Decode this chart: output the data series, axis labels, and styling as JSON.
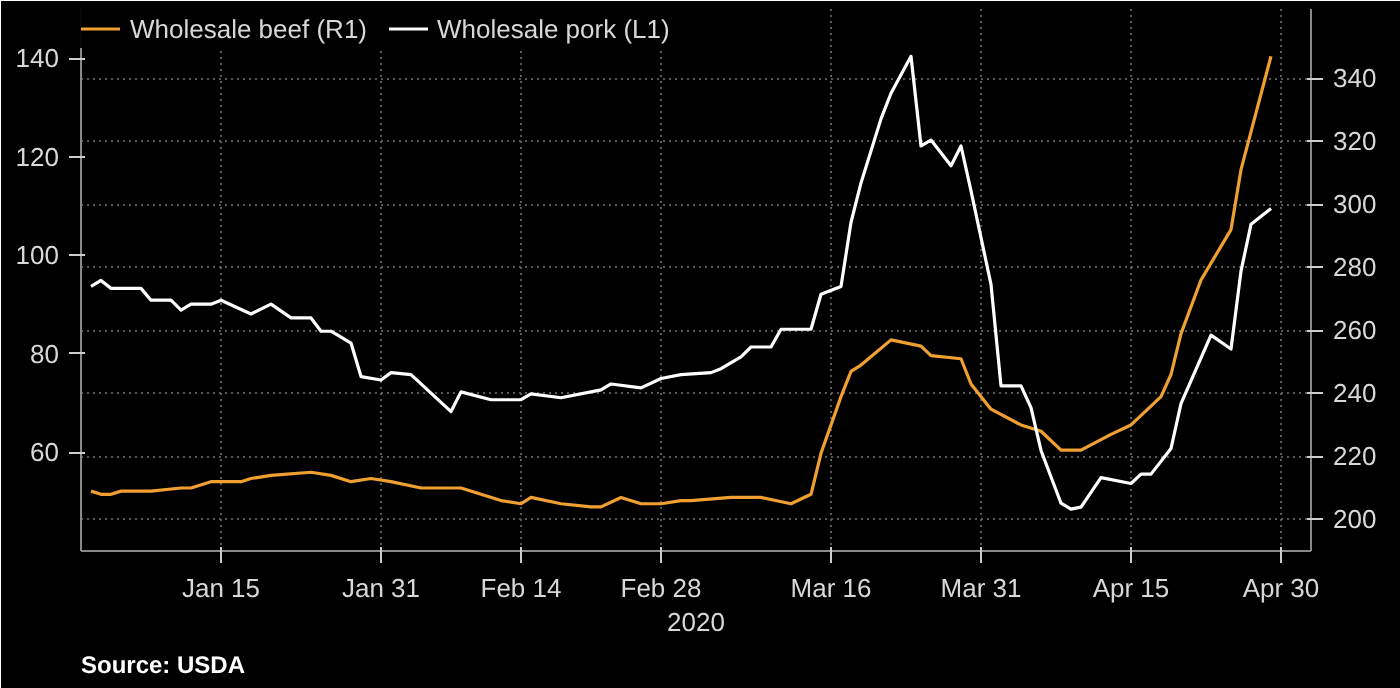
{
  "chart_data": {
    "type": "line",
    "xlabel": "2020",
    "annotations": [
      "Source: USDA"
    ],
    "legend": "top left",
    "grid": true,
    "line_style": "solid",
    "marker": "none",
    "xlim": [
      "2020-01-01",
      "2020-05-03"
    ],
    "xticks": [
      {
        "value": "2020-01-15",
        "label": "Jan 15"
      },
      {
        "value": "2020-01-31",
        "label": "Jan 31"
      },
      {
        "value": "2020-02-14",
        "label": "Feb 14"
      },
      {
        "value": "2020-02-28",
        "label": "Feb 28"
      },
      {
        "value": "2020-03-16",
        "label": "Mar 16"
      },
      {
        "value": "2020-03-31",
        "label": "Mar 31"
      },
      {
        "value": "2020-04-15",
        "label": "Apr 15"
      },
      {
        "value": "2020-04-30",
        "label": "Apr 30"
      }
    ],
    "ylim": [
      40,
      150
    ],
    "yticks": [
      60,
      80,
      100,
      120,
      140
    ],
    "y2lim": [
      190,
      362
    ],
    "y2ticks": [
      200,
      220,
      240,
      260,
      280,
      300,
      320,
      340
    ],
    "series": [
      {
        "name": "Wholesale beef (R1)",
        "color": "#f0a030",
        "axis": "y2",
        "x": [
          "2020-01-02",
          "2020-01-03",
          "2020-01-04",
          "2020-01-05",
          "2020-01-08",
          "2020-01-11",
          "2020-01-12",
          "2020-01-14",
          "2020-01-17",
          "2020-01-18",
          "2020-01-20",
          "2020-01-24",
          "2020-01-26",
          "2020-01-28",
          "2020-01-30",
          "2020-02-01",
          "2020-02-04",
          "2020-02-08",
          "2020-02-12",
          "2020-02-14",
          "2020-02-15",
          "2020-02-18",
          "2020-02-21",
          "2020-02-22",
          "2020-02-24",
          "2020-02-26",
          "2020-02-28",
          "2020-03-01",
          "2020-03-02",
          "2020-03-06",
          "2020-03-09",
          "2020-03-12",
          "2020-03-14",
          "2020-03-15",
          "2020-03-17",
          "2020-03-18",
          "2020-03-19",
          "2020-03-22",
          "2020-03-25",
          "2020-03-26",
          "2020-03-29",
          "2020-03-30",
          "2020-04-01",
          "2020-04-04",
          "2020-04-06",
          "2020-04-08",
          "2020-04-10",
          "2020-04-13",
          "2020-04-15",
          "2020-04-17",
          "2020-04-18",
          "2020-04-19",
          "2020-04-20",
          "2020-04-22",
          "2020-04-25",
          "2020-04-26",
          "2020-04-29"
        ],
        "values": [
          209,
          208,
          208,
          209,
          209,
          210,
          210,
          212,
          212,
          213,
          214,
          215,
          214,
          212,
          213,
          212,
          210,
          210,
          206,
          205,
          207,
          205,
          204,
          204,
          207,
          205,
          205,
          206,
          206,
          207,
          207,
          205,
          208,
          221,
          239,
          247,
          249,
          257,
          255,
          252,
          251,
          243,
          235,
          230,
          228,
          222,
          222,
          227,
          230,
          236,
          239,
          246,
          259,
          276,
          292,
          311,
          347
        ]
      },
      {
        "name": "Wholesale pork (L1)",
        "color": "#ffffff",
        "x": [
          "2020-01-02",
          "2020-01-03",
          "2020-01-04",
          "2020-01-07",
          "2020-01-08",
          "2020-01-10",
          "2020-01-11",
          "2020-01-12",
          "2020-01-14",
          "2020-01-15",
          "2020-01-18",
          "2020-01-20",
          "2020-01-22",
          "2020-01-24",
          "2020-01-25",
          "2020-01-26",
          "2020-01-28",
          "2020-01-29",
          "2020-01-31",
          "2020-02-01",
          "2020-02-03",
          "2020-02-07",
          "2020-02-08",
          "2020-02-11",
          "2020-02-14",
          "2020-02-15",
          "2020-02-18",
          "2020-02-22",
          "2020-02-23",
          "2020-02-26",
          "2020-02-28",
          "2020-03-01",
          "2020-03-04",
          "2020-03-05",
          "2020-03-07",
          "2020-03-08",
          "2020-03-10",
          "2020-03-11",
          "2020-03-12",
          "2020-03-14",
          "2020-03-15",
          "2020-03-17",
          "2020-03-18",
          "2020-03-19",
          "2020-03-21",
          "2020-03-22",
          "2020-03-24",
          "2020-03-25",
          "2020-03-26",
          "2020-03-28",
          "2020-03-29",
          "2020-03-30",
          "2020-04-01",
          "2020-04-02",
          "2020-04-04",
          "2020-04-05",
          "2020-04-06",
          "2020-04-08",
          "2020-04-09",
          "2020-04-10",
          "2020-04-12",
          "2020-04-15",
          "2020-04-16",
          "2020-04-17",
          "2020-04-19",
          "2020-04-20",
          "2020-04-23",
          "2020-04-25",
          "2020-04-26",
          "2020-04-27",
          "2020-04-29"
        ],
        "values": [
          93.7,
          94.9,
          93.3,
          93.3,
          90.9,
          90.9,
          88.9,
          90.1,
          90.1,
          90.9,
          88.1,
          90.1,
          87.3,
          87.3,
          84.6,
          84.6,
          82.2,
          75.4,
          74.7,
          76.2,
          75.8,
          68.3,
          72.3,
          70.7,
          70.7,
          71.9,
          71.1,
          72.7,
          73.9,
          73.1,
          75.0,
          75.8,
          76.2,
          77.0,
          79.4,
          81.4,
          81.4,
          85.0,
          85.0,
          85.0,
          92.1,
          93.7,
          106.7,
          114.7,
          127.7,
          132.9,
          140.4,
          122.2,
          123.4,
          118.2,
          122.2,
          113.1,
          94.1,
          73.5,
          73.5,
          69.1,
          60.4,
          49.7,
          48.5,
          48.9,
          54.9,
          53.7,
          55.6,
          55.6,
          60.8,
          69.9,
          83.8,
          81.0,
          96.8,
          106.3,
          109.5
        ]
      }
    ]
  }
}
